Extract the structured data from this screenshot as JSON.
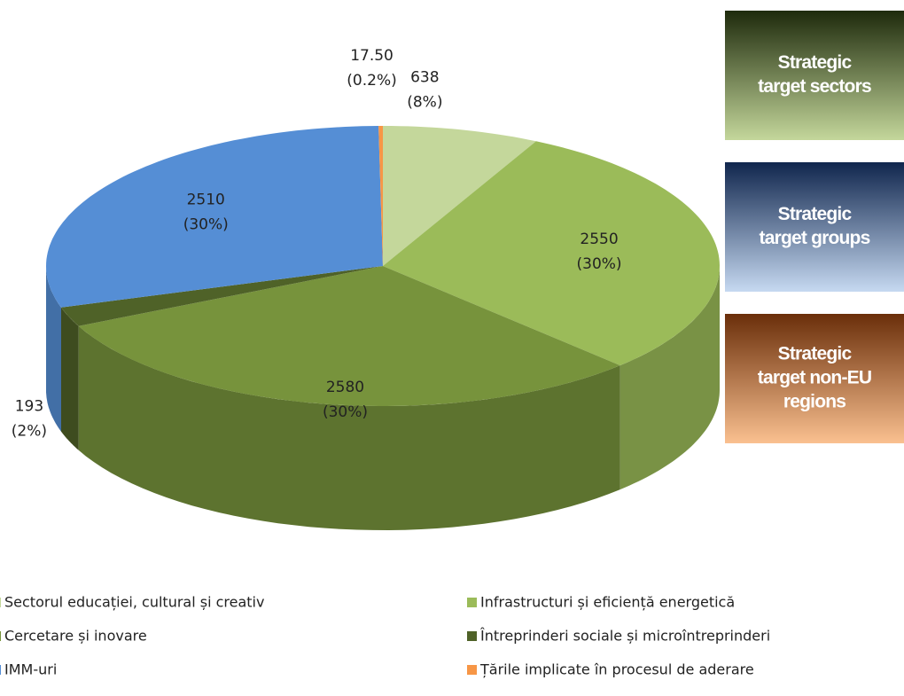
{
  "chart_data": {
    "type": "pie",
    "categories": [
      "Sectorul educației, cultural și creativ",
      "Infrastructuri  și eficiență energetică",
      "Cercetare și inovare",
      "Întreprinderi sociale și microîntreprinderi",
      "IMM-uri",
      "Țările implicate în procesul de aderare"
    ],
    "values": [
      638,
      2550,
      2580,
      193,
      2510,
      17.5
    ],
    "value_labels": [
      "638",
      "2550",
      "2580",
      "193",
      "2510",
      "17.50"
    ],
    "percent_labels": [
      "(8%)",
      "(30%)",
      "(30%)",
      "(2%)",
      "(30%)",
      "(0.2%)"
    ],
    "colors": [
      "#c4d79b",
      "#9bbb59",
      "#77933c",
      "#4f6228",
      "#558ed5",
      "#f79646"
    ],
    "legend": "bottom"
  },
  "side_boxes": [
    {
      "lines": [
        "Strategic",
        "target sectors"
      ],
      "top": "#1e2a0c",
      "bottom": "#c4d79b"
    },
    {
      "lines": [
        "Strategic",
        "target groups"
      ],
      "top": "#10264d",
      "bottom": "#c6d9f1"
    },
    {
      "lines": [
        "Strategic",
        "target non-EU",
        "regions"
      ],
      "top": "#6a2e0a",
      "bottom": "#fac090"
    }
  ]
}
